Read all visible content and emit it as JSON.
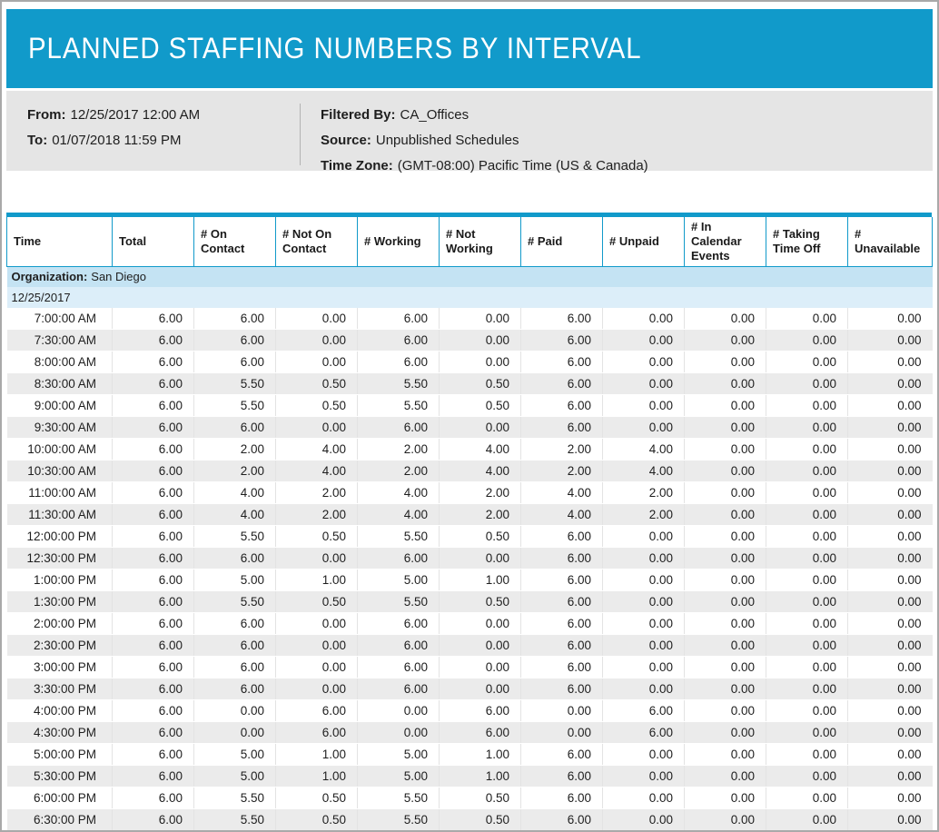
{
  "title": "PLANNED STAFFING NUMBERS BY INTERVAL",
  "info": {
    "from_label": "From:",
    "from_value": "12/25/2017 12:00 AM",
    "to_label": "To:",
    "to_value": "01/07/2018 11:59 PM",
    "filtered_by_label": "Filtered By:",
    "filtered_by_value": "CA_Offices",
    "source_label": "Source:",
    "source_value": "Unpublished Schedules",
    "time_zone_label": "Time Zone:",
    "time_zone_value": "(GMT-08:00) Pacific Time (US & Canada)"
  },
  "colors": {
    "accent": "#119aca",
    "info_bg": "#e5e5e5",
    "org_row_bg": "#c4e3f3",
    "date_row_bg": "#dceef9",
    "alt_row_bg": "#ebebeb"
  },
  "table": {
    "columns": [
      "Time",
      "Total",
      "# On Contact",
      "# Not On Contact",
      "# Working",
      "# Not Working",
      "# Paid",
      "# Unpaid",
      "# In Calendar Events",
      "# Taking Time Off",
      "# Unavailable"
    ],
    "organization_label": "Organization:",
    "organization_value": "San Diego",
    "date_group": "12/25/2017",
    "rows": [
      [
        "7:00:00 AM",
        "6.00",
        "6.00",
        "0.00",
        "6.00",
        "0.00",
        "6.00",
        "0.00",
        "0.00",
        "0.00",
        "0.00"
      ],
      [
        "7:30:00 AM",
        "6.00",
        "6.00",
        "0.00",
        "6.00",
        "0.00",
        "6.00",
        "0.00",
        "0.00",
        "0.00",
        "0.00"
      ],
      [
        "8:00:00 AM",
        "6.00",
        "6.00",
        "0.00",
        "6.00",
        "0.00",
        "6.00",
        "0.00",
        "0.00",
        "0.00",
        "0.00"
      ],
      [
        "8:30:00 AM",
        "6.00",
        "5.50",
        "0.50",
        "5.50",
        "0.50",
        "6.00",
        "0.00",
        "0.00",
        "0.00",
        "0.00"
      ],
      [
        "9:00:00 AM",
        "6.00",
        "5.50",
        "0.50",
        "5.50",
        "0.50",
        "6.00",
        "0.00",
        "0.00",
        "0.00",
        "0.00"
      ],
      [
        "9:30:00 AM",
        "6.00",
        "6.00",
        "0.00",
        "6.00",
        "0.00",
        "6.00",
        "0.00",
        "0.00",
        "0.00",
        "0.00"
      ],
      [
        "10:00:00 AM",
        "6.00",
        "2.00",
        "4.00",
        "2.00",
        "4.00",
        "2.00",
        "4.00",
        "0.00",
        "0.00",
        "0.00"
      ],
      [
        "10:30:00 AM",
        "6.00",
        "2.00",
        "4.00",
        "2.00",
        "4.00",
        "2.00",
        "4.00",
        "0.00",
        "0.00",
        "0.00"
      ],
      [
        "11:00:00 AM",
        "6.00",
        "4.00",
        "2.00",
        "4.00",
        "2.00",
        "4.00",
        "2.00",
        "0.00",
        "0.00",
        "0.00"
      ],
      [
        "11:30:00 AM",
        "6.00",
        "4.00",
        "2.00",
        "4.00",
        "2.00",
        "4.00",
        "2.00",
        "0.00",
        "0.00",
        "0.00"
      ],
      [
        "12:00:00 PM",
        "6.00",
        "5.50",
        "0.50",
        "5.50",
        "0.50",
        "6.00",
        "0.00",
        "0.00",
        "0.00",
        "0.00"
      ],
      [
        "12:30:00 PM",
        "6.00",
        "6.00",
        "0.00",
        "6.00",
        "0.00",
        "6.00",
        "0.00",
        "0.00",
        "0.00",
        "0.00"
      ],
      [
        "1:00:00 PM",
        "6.00",
        "5.00",
        "1.00",
        "5.00",
        "1.00",
        "6.00",
        "0.00",
        "0.00",
        "0.00",
        "0.00"
      ],
      [
        "1:30:00 PM",
        "6.00",
        "5.50",
        "0.50",
        "5.50",
        "0.50",
        "6.00",
        "0.00",
        "0.00",
        "0.00",
        "0.00"
      ],
      [
        "2:00:00 PM",
        "6.00",
        "6.00",
        "0.00",
        "6.00",
        "0.00",
        "6.00",
        "0.00",
        "0.00",
        "0.00",
        "0.00"
      ],
      [
        "2:30:00 PM",
        "6.00",
        "6.00",
        "0.00",
        "6.00",
        "0.00",
        "6.00",
        "0.00",
        "0.00",
        "0.00",
        "0.00"
      ],
      [
        "3:00:00 PM",
        "6.00",
        "6.00",
        "0.00",
        "6.00",
        "0.00",
        "6.00",
        "0.00",
        "0.00",
        "0.00",
        "0.00"
      ],
      [
        "3:30:00 PM",
        "6.00",
        "6.00",
        "0.00",
        "6.00",
        "0.00",
        "6.00",
        "0.00",
        "0.00",
        "0.00",
        "0.00"
      ],
      [
        "4:00:00 PM",
        "6.00",
        "0.00",
        "6.00",
        "0.00",
        "6.00",
        "0.00",
        "6.00",
        "0.00",
        "0.00",
        "0.00"
      ],
      [
        "4:30:00 PM",
        "6.00",
        "0.00",
        "6.00",
        "0.00",
        "6.00",
        "0.00",
        "6.00",
        "0.00",
        "0.00",
        "0.00"
      ],
      [
        "5:00:00 PM",
        "6.00",
        "5.00",
        "1.00",
        "5.00",
        "1.00",
        "6.00",
        "0.00",
        "0.00",
        "0.00",
        "0.00"
      ],
      [
        "5:30:00 PM",
        "6.00",
        "5.00",
        "1.00",
        "5.00",
        "1.00",
        "6.00",
        "0.00",
        "0.00",
        "0.00",
        "0.00"
      ],
      [
        "6:00:00 PM",
        "6.00",
        "5.50",
        "0.50",
        "5.50",
        "0.50",
        "6.00",
        "0.00",
        "0.00",
        "0.00",
        "0.00"
      ],
      [
        "6:30:00 PM",
        "6.00",
        "5.50",
        "0.50",
        "5.50",
        "0.50",
        "6.00",
        "0.00",
        "0.00",
        "0.00",
        "0.00"
      ]
    ]
  }
}
